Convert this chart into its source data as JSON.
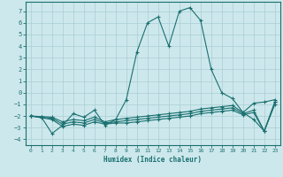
{
  "xlabel": "Humidex (Indice chaleur)",
  "ylabel": "",
  "xlim": [
    -0.5,
    23.5
  ],
  "ylim": [
    -4.5,
    7.8
  ],
  "xticks": [
    0,
    1,
    2,
    3,
    4,
    5,
    6,
    7,
    8,
    9,
    10,
    11,
    12,
    13,
    14,
    15,
    16,
    17,
    18,
    19,
    20,
    21,
    22,
    23
  ],
  "yticks": [
    -4,
    -3,
    -2,
    -1,
    0,
    1,
    2,
    3,
    4,
    5,
    6,
    7
  ],
  "background_color": "#cde8ec",
  "grid_color": "#a8cdd4",
  "line_color": "#1a7070",
  "line1_x": [
    0,
    1,
    2,
    3,
    4,
    5,
    6,
    7,
    8,
    9,
    10,
    11,
    12,
    13,
    14,
    15,
    16,
    17,
    18,
    19,
    20,
    21,
    22,
    23
  ],
  "line1_y": [
    -2.0,
    -2.1,
    -3.5,
    -2.8,
    -1.8,
    -2.1,
    -1.5,
    -2.8,
    -2.3,
    -0.6,
    3.5,
    6.0,
    6.5,
    4.0,
    7.0,
    7.3,
    6.2,
    2.0,
    0.0,
    -0.5,
    -1.7,
    -2.3,
    -3.3,
    -0.8
  ],
  "line2_x": [
    0,
    1,
    2,
    3,
    4,
    5,
    6,
    7,
    8,
    9,
    10,
    11,
    12,
    13,
    14,
    15,
    16,
    17,
    18,
    19,
    20,
    21,
    22,
    23
  ],
  "line2_y": [
    -2.0,
    -2.05,
    -2.1,
    -2.5,
    -2.3,
    -2.4,
    -2.1,
    -2.5,
    -2.3,
    -2.2,
    -2.1,
    -2.0,
    -1.9,
    -1.8,
    -1.7,
    -1.6,
    -1.4,
    -1.3,
    -1.2,
    -1.1,
    -1.7,
    -0.9,
    -0.8,
    -0.6
  ],
  "line3_x": [
    0,
    1,
    2,
    3,
    4,
    5,
    6,
    7,
    8,
    9,
    10,
    11,
    12,
    13,
    14,
    15,
    16,
    17,
    18,
    19,
    20,
    21,
    22,
    23
  ],
  "line3_y": [
    -2.0,
    -2.1,
    -2.2,
    -2.7,
    -2.5,
    -2.6,
    -2.3,
    -2.6,
    -2.5,
    -2.4,
    -2.3,
    -2.2,
    -2.1,
    -2.0,
    -1.9,
    -1.8,
    -1.6,
    -1.5,
    -1.4,
    -1.3,
    -1.8,
    -1.5,
    -3.3,
    -0.8
  ],
  "line4_x": [
    0,
    1,
    2,
    3,
    4,
    5,
    6,
    7,
    8,
    9,
    10,
    11,
    12,
    13,
    14,
    15,
    16,
    17,
    18,
    19,
    20,
    21,
    22,
    23
  ],
  "line4_y": [
    -2.0,
    -2.15,
    -2.3,
    -2.9,
    -2.7,
    -2.8,
    -2.5,
    -2.7,
    -2.6,
    -2.6,
    -2.5,
    -2.4,
    -2.3,
    -2.2,
    -2.1,
    -2.0,
    -1.8,
    -1.7,
    -1.6,
    -1.5,
    -1.9,
    -1.7,
    -3.3,
    -1.0
  ]
}
